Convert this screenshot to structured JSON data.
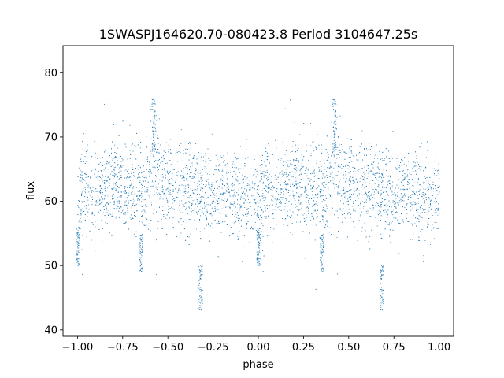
{
  "chart_data": {
    "type": "scatter",
    "title": "1SWASPJ164620.70-080423.8 Period 3104647.25s",
    "xlabel": "phase",
    "ylabel": "flux",
    "xlim": [
      -1.08,
      1.08
    ],
    "ylim": [
      39,
      84.2
    ],
    "xticks": [
      -1.0,
      -0.75,
      -0.5,
      -0.25,
      0.0,
      0.25,
      0.5,
      0.75,
      1.0
    ],
    "xtick_labels": [
      "−1.00",
      "−0.75",
      "−0.50",
      "−0.25",
      "0.00",
      "0.25",
      "0.50",
      "0.75",
      "1.00"
    ],
    "yticks": [
      40,
      50,
      60,
      70,
      80
    ],
    "ytick_labels": [
      "40",
      "50",
      "60",
      "70",
      "80"
    ],
    "grid": false,
    "marker_color": "#1f77b4",
    "series": [
      {
        "profile_phase": [
          0.0,
          0.025,
          0.05,
          0.075,
          0.1,
          0.125,
          0.15,
          0.175,
          0.2,
          0.225,
          0.25,
          0.275,
          0.3,
          0.325,
          0.35,
          0.375,
          0.4,
          0.425,
          0.45,
          0.475,
          0.5,
          0.525,
          0.55,
          0.575,
          0.6,
          0.625,
          0.65,
          0.675,
          0.7,
          0.725,
          0.75,
          0.775,
          0.8,
          0.825,
          0.85,
          0.875,
          0.9,
          0.925,
          0.95,
          0.975
        ],
        "profile_flux": [
          61.0,
          61.5,
          62.0,
          61.5,
          62.0,
          61.5,
          62.0,
          62.5,
          63.0,
          62.5,
          62.0,
          61.5,
          63.0,
          62.5,
          61.0,
          62.0,
          64.0,
          66.0,
          64.0,
          62.5,
          62.0,
          63.0,
          64.0,
          63.5,
          62.5,
          62.0,
          62.5,
          62.0,
          61.0,
          60.5,
          61.0,
          61.5,
          62.0,
          61.5,
          61.0,
          61.5,
          61.0,
          60.5,
          60.0,
          61.0
        ],
        "profile_scatter": [
          3.0,
          3.2,
          3.0,
          3.2,
          2.8,
          3.0,
          3.0,
          3.2,
          3.0,
          3.0,
          2.8,
          3.0,
          3.5,
          3.5,
          3.2,
          3.5,
          4.0,
          4.5,
          4.0,
          3.5,
          3.5,
          3.5,
          3.5,
          3.5,
          3.2,
          3.2,
          3.2,
          3.2,
          3.0,
          3.5,
          3.0,
          2.8,
          2.8,
          2.8,
          3.0,
          3.0,
          3.0,
          3.2,
          3.5,
          3.2
        ],
        "dips": [
          {
            "phase": 0.68,
            "flux_low": 43,
            "flux_high": 50
          },
          {
            "phase": 0.35,
            "flux_low": 49,
            "flux_high": 55
          },
          {
            "phase": 0.0,
            "flux_low": 50,
            "flux_high": 56
          }
        ],
        "flares": [
          {
            "phase": 0.42,
            "flux_low": 67,
            "flux_high": 76
          }
        ]
      }
    ]
  }
}
